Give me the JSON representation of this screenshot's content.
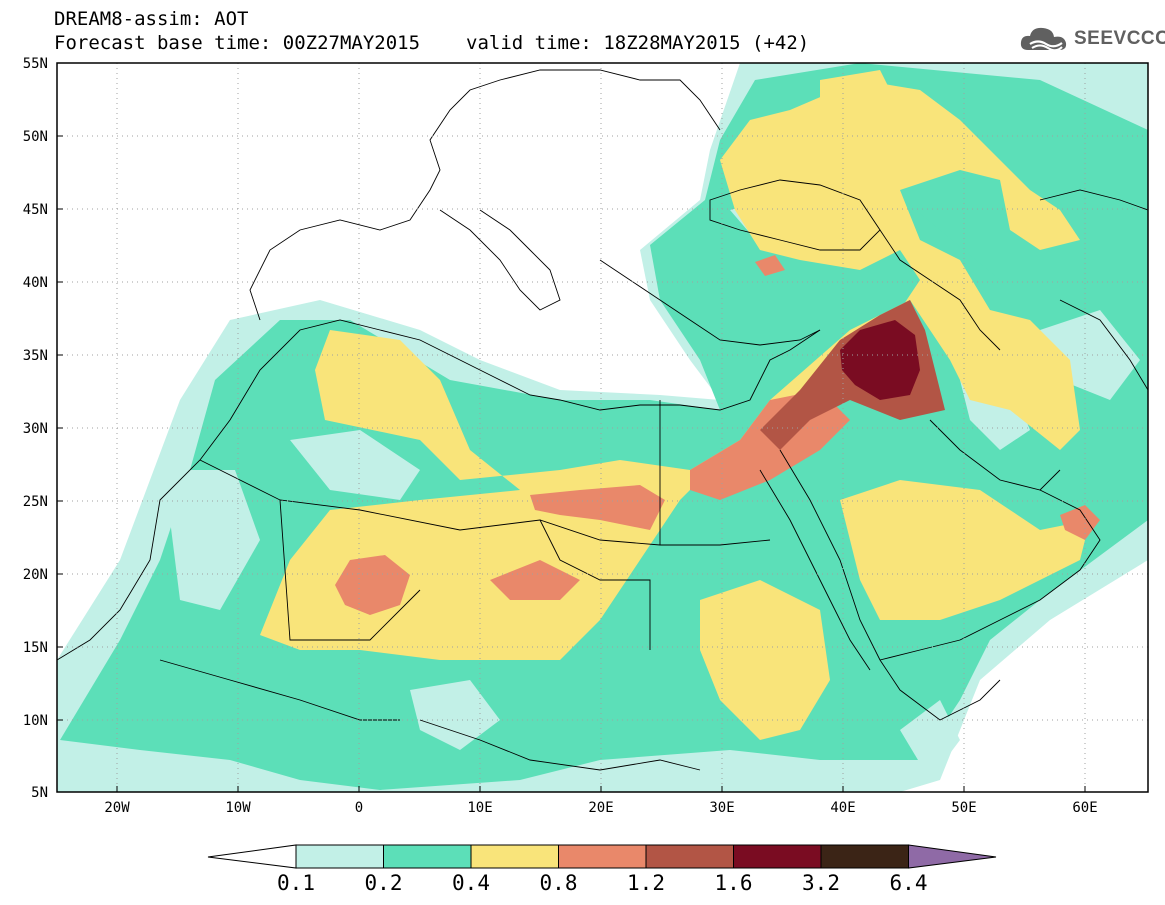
{
  "header": {
    "line1": "DREAM8-assim: AOT",
    "base_time": "Forecast base time: 00Z27MAY2015",
    "valid_time": "valid time: 18Z28MAY2015 (+42)"
  },
  "logo": {
    "text": "SEEVCCC",
    "icon": "cloud-icon"
  },
  "axes": {
    "lon_labels": [
      "20W",
      "10W",
      "0",
      "10E",
      "20E",
      "30E",
      "40E",
      "50E",
      "60E"
    ],
    "lat_labels": [
      "55N",
      "50N",
      "45N",
      "40N",
      "35N",
      "30N",
      "25N",
      "20N",
      "15N",
      "10N",
      "5N"
    ],
    "lon_range": [
      -25,
      65
    ],
    "lat_range": [
      5,
      55
    ]
  },
  "colorbar": {
    "labels": [
      "0.1",
      "0.2",
      "0.4",
      "0.8",
      "1.2",
      "1.6",
      "3.2",
      "6.4"
    ],
    "colors": [
      "#ffffff",
      "#c2f0e7",
      "#5cdfb8",
      "#f9e47a",
      "#e9886a",
      "#b25545",
      "#7a0c22",
      "#3b2416",
      "#8f6aa6"
    ]
  }
}
